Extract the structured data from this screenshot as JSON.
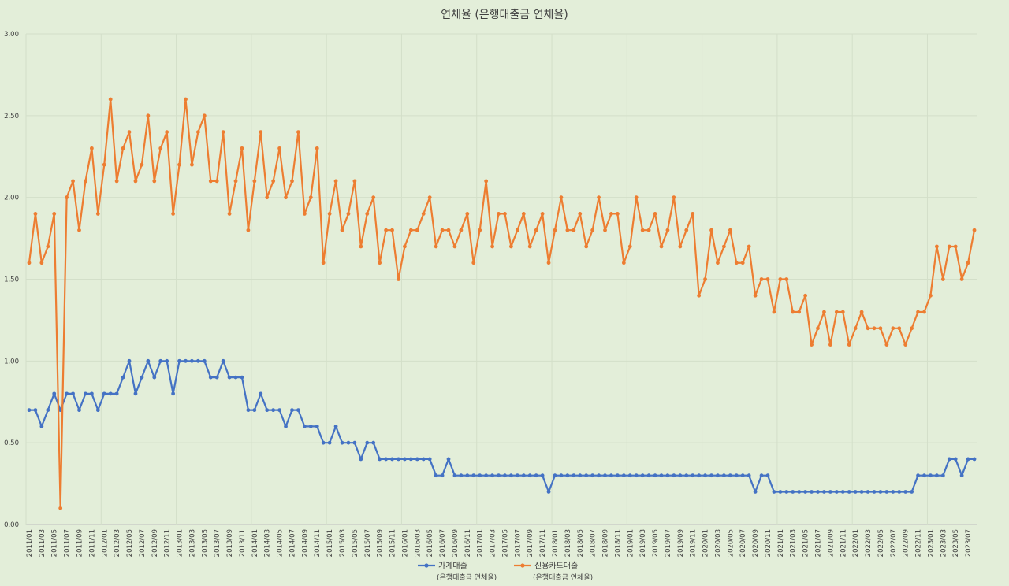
{
  "chart_data": {
    "type": "line",
    "title": "연체율 (은행대출금 연체율)",
    "xlabel": "",
    "ylabel": "",
    "ylim": [
      0,
      3
    ],
    "yticks": [
      "0.00",
      "0.50",
      "1.00",
      "1.50",
      "2.00",
      "2.50",
      "3.00"
    ],
    "grid": true,
    "legend_position": "bottom",
    "x": [
      "2011/01",
      "2011/02",
      "2011/03",
      "2011/04",
      "2011/05",
      "2011/06",
      "2011/07",
      "2011/08",
      "2011/09",
      "2011/10",
      "2011/11",
      "2011/12",
      "2012/01",
      "2012/02",
      "2012/03",
      "2012/04",
      "2012/05",
      "2012/06",
      "2012/07",
      "2012/08",
      "2012/09",
      "2012/10",
      "2012/11",
      "2012/12",
      "2013/01",
      "2013/02",
      "2013/03",
      "2013/04",
      "2013/05",
      "2013/06",
      "2013/07",
      "2013/08",
      "2013/09",
      "2013/10",
      "2013/11",
      "2013/12",
      "2014/01",
      "2014/02",
      "2014/03",
      "2014/04",
      "2014/05",
      "2014/06",
      "2014/07",
      "2014/08",
      "2014/09",
      "2014/10",
      "2014/11",
      "2014/12",
      "2015/01",
      "2015/02",
      "2015/03",
      "2015/04",
      "2015/05",
      "2015/06",
      "2015/07",
      "2015/08",
      "2015/09",
      "2015/10",
      "2015/11",
      "2015/12",
      "2016/01",
      "2016/02",
      "2016/03",
      "2016/04",
      "2016/05",
      "2016/06",
      "2016/07",
      "2016/08",
      "2016/09",
      "2016/10",
      "2016/11",
      "2016/12",
      "2017/01",
      "2017/02",
      "2017/03",
      "2017/04",
      "2017/05",
      "2017/06",
      "2017/07",
      "2017/08",
      "2017/09",
      "2017/10",
      "2017/11",
      "2017/12",
      "2018/01",
      "2018/02",
      "2018/03",
      "2018/04",
      "2018/05",
      "2018/06",
      "2018/07",
      "2018/08",
      "2018/09",
      "2018/10",
      "2018/11",
      "2018/12",
      "2019/01",
      "2019/02",
      "2019/03",
      "2019/04",
      "2019/05",
      "2019/06",
      "2019/07",
      "2019/08",
      "2019/09",
      "2019/10",
      "2019/11",
      "2019/12",
      "2020/01",
      "2020/02",
      "2020/03",
      "2020/04",
      "2020/05",
      "2020/06",
      "2020/07",
      "2020/08",
      "2020/09",
      "2020/10",
      "2020/11",
      "2020/12",
      "2021/01",
      "2021/02",
      "2021/03",
      "2021/04",
      "2021/05",
      "2021/06",
      "2021/07",
      "2021/08",
      "2021/09",
      "2021/10",
      "2021/11",
      "2021/12",
      "2022/01",
      "2022/02",
      "2022/03",
      "2022/04",
      "2022/05",
      "2022/06",
      "2022/07",
      "2022/08",
      "2022/09",
      "2022/10",
      "2022/11",
      "2022/12",
      "2023/01",
      "2023/02",
      "2023/03",
      "2023/04",
      "2023/05",
      "2023/06",
      "2023/07",
      "2023/08"
    ],
    "series": [
      {
        "name": "가계대출",
        "sub": "(은행대출금 연체율)",
        "color": "#4472c4",
        "values": [
          0.7,
          0.7,
          0.6,
          0.7,
          0.8,
          0.7,
          0.8,
          0.8,
          0.7,
          0.8,
          0.8,
          0.7,
          0.8,
          0.8,
          0.8,
          0.9,
          1.0,
          0.8,
          0.9,
          1.0,
          0.9,
          1.0,
          1.0,
          0.8,
          1.0,
          1.0,
          1.0,
          1.0,
          1.0,
          0.9,
          0.9,
          1.0,
          0.9,
          0.9,
          0.9,
          0.7,
          0.7,
          0.8,
          0.7,
          0.7,
          0.7,
          0.6,
          0.7,
          0.7,
          0.6,
          0.6,
          0.6,
          0.5,
          0.5,
          0.6,
          0.5,
          0.5,
          0.5,
          0.4,
          0.5,
          0.5,
          0.4,
          0.4,
          0.4,
          0.4,
          0.4,
          0.4,
          0.4,
          0.4,
          0.4,
          0.3,
          0.3,
          0.4,
          0.3,
          0.3,
          0.3,
          0.3,
          0.3,
          0.3,
          0.3,
          0.3,
          0.3,
          0.3,
          0.3,
          0.3,
          0.3,
          0.3,
          0.3,
          0.2,
          0.3,
          0.3,
          0.3,
          0.3,
          0.3,
          0.3,
          0.3,
          0.3,
          0.3,
          0.3,
          0.3,
          0.3,
          0.3,
          0.3,
          0.3,
          0.3,
          0.3,
          0.3,
          0.3,
          0.3,
          0.3,
          0.3,
          0.3,
          0.3,
          0.3,
          0.3,
          0.3,
          0.3,
          0.3,
          0.3,
          0.3,
          0.3,
          0.2,
          0.3,
          0.3,
          0.2,
          0.2,
          0.2,
          0.2,
          0.2,
          0.2,
          0.2,
          0.2,
          0.2,
          0.2,
          0.2,
          0.2,
          0.2,
          0.2,
          0.2,
          0.2,
          0.2,
          0.2,
          0.2,
          0.2,
          0.2,
          0.2,
          0.2,
          0.3,
          0.3,
          0.3,
          0.3,
          0.3,
          0.4,
          0.4,
          0.3,
          0.4,
          0.4
        ]
      },
      {
        "name": "신용카드대출",
        "sub": "(은행대출금 연체율)",
        "color": "#ed7d31",
        "values": [
          1.6,
          1.9,
          1.6,
          1.7,
          1.9,
          0.1,
          2.0,
          2.1,
          1.8,
          2.1,
          2.3,
          1.9,
          2.2,
          2.6,
          2.1,
          2.3,
          2.4,
          2.1,
          2.2,
          2.5,
          2.1,
          2.3,
          2.4,
          1.9,
          2.2,
          2.6,
          2.2,
          2.4,
          2.5,
          2.1,
          2.1,
          2.4,
          1.9,
          2.1,
          2.3,
          1.8,
          2.1,
          2.4,
          2.0,
          2.1,
          2.3,
          2.0,
          2.1,
          2.4,
          1.9,
          2.0,
          2.3,
          1.6,
          1.9,
          2.1,
          1.8,
          1.9,
          2.1,
          1.7,
          1.9,
          2.0,
          1.6,
          1.8,
          1.8,
          1.5,
          1.7,
          1.8,
          1.8,
          1.9,
          2.0,
          1.7,
          1.8,
          1.8,
          1.7,
          1.8,
          1.9,
          1.6,
          1.8,
          2.1,
          1.7,
          1.9,
          1.9,
          1.7,
          1.8,
          1.9,
          1.7,
          1.8,
          1.9,
          1.6,
          1.8,
          2.0,
          1.8,
          1.8,
          1.9,
          1.7,
          1.8,
          2.0,
          1.8,
          1.9,
          1.9,
          1.6,
          1.7,
          2.0,
          1.8,
          1.8,
          1.9,
          1.7,
          1.8,
          2.0,
          1.7,
          1.8,
          1.9,
          1.4,
          1.5,
          1.8,
          1.6,
          1.7,
          1.8,
          1.6,
          1.6,
          1.7,
          1.4,
          1.5,
          1.5,
          1.3,
          1.5,
          1.5,
          1.3,
          1.3,
          1.4,
          1.1,
          1.2,
          1.3,
          1.1,
          1.3,
          1.3,
          1.1,
          1.2,
          1.3,
          1.2,
          1.2,
          1.2,
          1.1,
          1.2,
          1.2,
          1.1,
          1.2,
          1.3,
          1.3,
          1.4,
          1.7,
          1.5,
          1.7,
          1.7,
          1.5,
          1.6,
          1.8
        ]
      }
    ]
  }
}
